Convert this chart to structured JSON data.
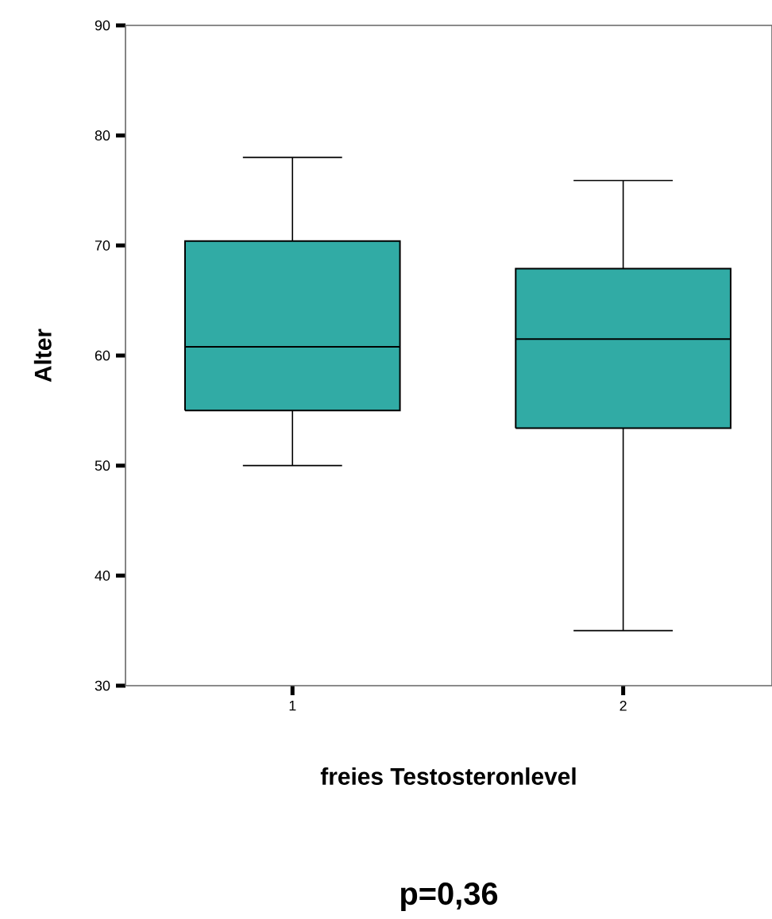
{
  "chart_data": {
    "type": "box",
    "categories": [
      "1",
      "2"
    ],
    "color": "#31aba5",
    "boxes": [
      {
        "low": 50,
        "q1": 55,
        "median": 60.8,
        "q3": 70.4,
        "high": 78
      },
      {
        "low": 35,
        "q1": 53.4,
        "median": 61.5,
        "q3": 67.9,
        "high": 75.9
      }
    ],
    "ylim": [
      30,
      90
    ],
    "yticks": [
      30,
      40,
      50,
      60,
      70,
      80,
      90
    ],
    "xlabel": "freies Testosteronlevel",
    "ylabel": "Alter",
    "annotations": [
      "p=0,36"
    ]
  }
}
